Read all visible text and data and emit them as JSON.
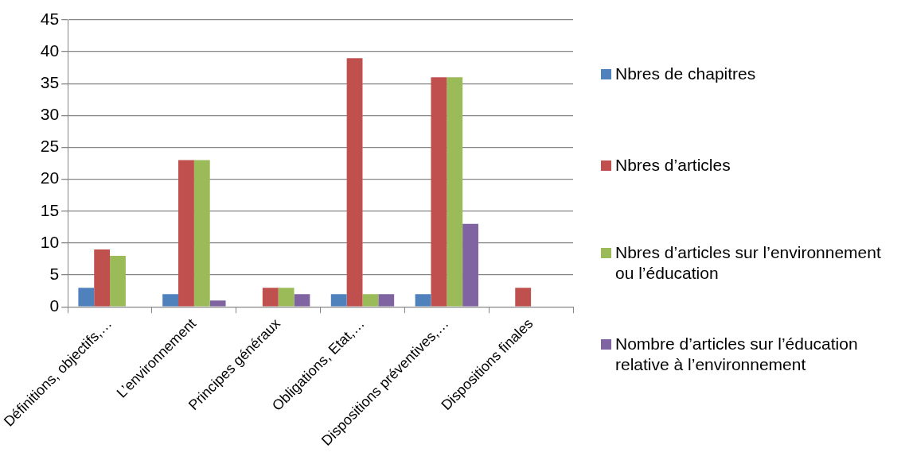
{
  "chart_data": {
    "type": "bar",
    "categories": [
      "Définitions, objectifs,…",
      "L’environnement",
      "Principes généraux",
      "Obligations, Etat,…",
      "Dispositions préventives,…",
      "Dispositions finales"
    ],
    "series": [
      {
        "name": "Nbres de chapitres",
        "color": "#4f81bd",
        "values": [
          3,
          2,
          0,
          2,
          2,
          0
        ]
      },
      {
        "name": "Nbres d’articles",
        "color": "#c0504d",
        "values": [
          9,
          23,
          3,
          39,
          36,
          3
        ]
      },
      {
        "name": "Nbres d’articles sur l’environnement ou l’éducation",
        "color": "#9bbb59",
        "values": [
          8,
          23,
          3,
          2,
          36,
          0
        ]
      },
      {
        "name": "Nombre d’articles sur l’éducation relative à l’environnement",
        "color": "#8064a2",
        "values": [
          0,
          1,
          2,
          2,
          13,
          0
        ]
      }
    ],
    "ylim": [
      0,
      45
    ],
    "yticks": [
      0,
      5,
      10,
      15,
      20,
      25,
      30,
      35,
      40,
      45
    ],
    "grid": "y",
    "legend": "right"
  }
}
